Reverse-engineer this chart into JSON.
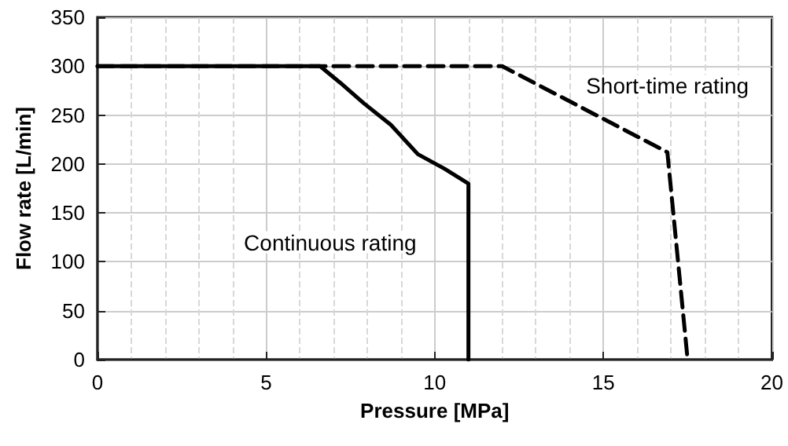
{
  "chart_data": {
    "type": "line",
    "xlabel": "Pressure [MPa]",
    "ylabel": "Flow rate [L/min]",
    "xlim": [
      0,
      20
    ],
    "xticks": [
      0,
      5,
      10,
      15,
      20
    ],
    "ylim": [
      0,
      350
    ],
    "yticks": [
      0,
      50,
      100,
      150,
      200,
      250,
      300,
      350
    ],
    "grid": true,
    "legend": false,
    "marker": "none",
    "series": [
      {
        "name": "Continuous rating",
        "color": "#000000",
        "line_style": "solid",
        "x": [
          0,
          6.6,
          7.2,
          7.9,
          8.7,
          9.5,
          10.3,
          11,
          11
        ],
        "values": [
          300,
          300,
          283,
          262,
          240,
          210,
          195,
          180,
          0
        ]
      },
      {
        "name": "Short-time rating",
        "color": "#000000",
        "line_style": "dashed",
        "x": [
          0,
          12,
          16.9,
          17.5
        ],
        "values": [
          300,
          300,
          212,
          0
        ]
      }
    ]
  }
}
